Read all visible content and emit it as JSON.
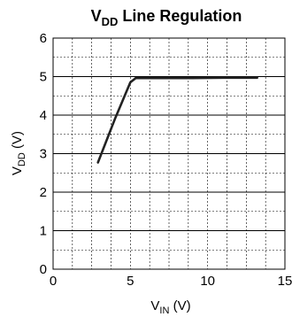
{
  "chart_data": {
    "type": "line",
    "title": {
      "main": "V",
      "sub": "DD",
      "rest": " Line Regulation"
    },
    "xlabel": {
      "main": "V",
      "sub": "IN",
      "rest": " (V)"
    },
    "ylabel": {
      "main": "V",
      "sub": "DD",
      "rest": " (V)"
    },
    "xlim": [
      0,
      15
    ],
    "ylim": [
      0,
      6
    ],
    "xticks": [
      0,
      5,
      10,
      15
    ],
    "yticks": [
      0,
      1,
      2,
      3,
      4,
      5,
      6
    ],
    "x_minor_step": 1.25,
    "y_minor_step": 0.5,
    "grid": true,
    "series": [
      {
        "color": "#222222",
        "x": [
          2.9,
          4.0,
          5.0,
          5.35,
          5.8,
          7.0,
          9.0,
          11.0,
          13.2
        ],
        "y": [
          2.77,
          3.9,
          4.85,
          4.96,
          4.96,
          4.96,
          4.96,
          4.97,
          4.97
        ]
      }
    ]
  }
}
